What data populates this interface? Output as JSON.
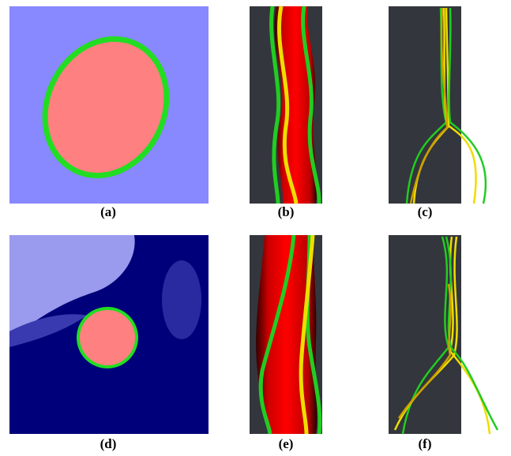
{
  "panels": [
    {
      "caption": "(a)"
    },
    {
      "caption": "(b)"
    },
    {
      "caption": "(c)"
    },
    {
      "caption": "(d)"
    },
    {
      "caption": "(e)"
    },
    {
      "caption": "(f)"
    }
  ]
}
